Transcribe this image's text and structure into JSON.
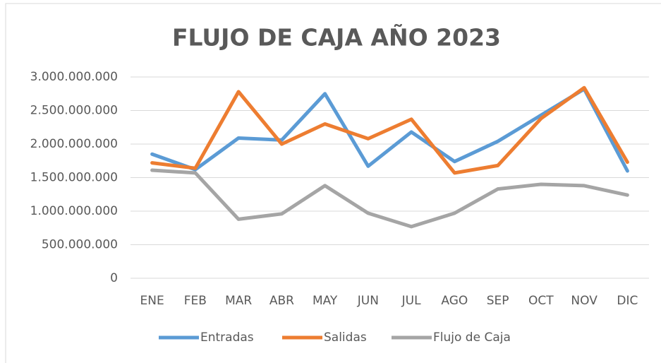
{
  "chart_data": {
    "type": "line",
    "title": "FLUJO DE CAJA AÑO 2023",
    "categories": [
      "ENE",
      "FEB",
      "MAR",
      "ABR",
      "MAY",
      "JUN",
      "JUL",
      "AGO",
      "SEP",
      "OCT",
      "NOV",
      "DIC"
    ],
    "series": [
      {
        "name": "Entradas",
        "color": "#5b9bd5",
        "values": [
          1850000000,
          1620000000,
          2090000000,
          2060000000,
          2750000000,
          1670000000,
          2180000000,
          1740000000,
          2040000000,
          2430000000,
          2820000000,
          1600000000
        ]
      },
      {
        "name": "Salidas",
        "color": "#ed7d31",
        "values": [
          1720000000,
          1640000000,
          2780000000,
          2000000000,
          2300000000,
          2080000000,
          2370000000,
          1570000000,
          1680000000,
          2380000000,
          2840000000,
          1730000000
        ]
      },
      {
        "name": "Flujo de Caja",
        "color": "#a5a5a5",
        "values": [
          1610000000,
          1570000000,
          880000000,
          960000000,
          1380000000,
          970000000,
          770000000,
          970000000,
          1330000000,
          1400000000,
          1380000000,
          1240000000
        ]
      }
    ],
    "ylim": [
      0,
      3000000000
    ],
    "yticks": [
      0,
      {
        "value": 500000000,
        "label": "500.000.000"
      },
      {
        "value": 1000000000,
        "label": "1.000.000.000"
      },
      {
        "value": 1500000000,
        "label": "1.500.000.000"
      },
      {
        "value": 2000000000,
        "label": "2.000.000.000"
      },
      {
        "value": 2500000000,
        "label": "2.500.000.000"
      },
      {
        "value": 3000000000,
        "label": "3.000.000.000"
      }
    ],
    "grid": true,
    "legend": "bottom"
  }
}
